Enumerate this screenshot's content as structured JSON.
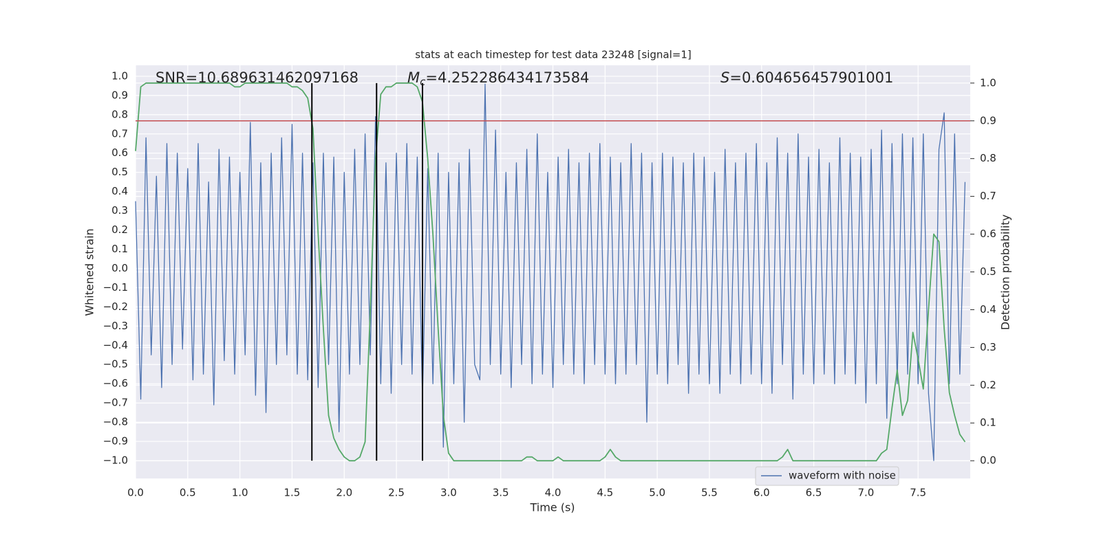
{
  "chart_data": {
    "type": "line",
    "title": "stats at each timestep for test data 23248 [signal=1]",
    "xlabel": "Time (s)",
    "ylabel": "Whitened strain",
    "y2label": "Detection probability",
    "annotations": [
      {
        "text": "SNR=10.689631462097168"
      },
      {
        "symbol": "M",
        "subscript": "c",
        "text": "=4.252286434173584"
      },
      {
        "symbol": "S",
        "text": "=0.604656457901001"
      }
    ],
    "xlim": [
      0,
      8.0
    ],
    "ylim": [
      -1.093,
      1.057
    ],
    "y2lim": [
      -0.047,
      1.047
    ],
    "grid": true,
    "legend": "lower right",
    "xticks": [
      {
        "value": 0,
        "label": "0.0"
      },
      {
        "value": 0.5,
        "label": "0.5"
      },
      {
        "value": 1,
        "label": "1.0"
      },
      {
        "value": 1.5,
        "label": "1.5"
      },
      {
        "value": 2,
        "label": "2.0"
      },
      {
        "value": 2.5,
        "label": "2.5"
      },
      {
        "value": 3,
        "label": "3.0"
      },
      {
        "value": 3.5,
        "label": "3.5"
      },
      {
        "value": 4,
        "label": "4.0"
      },
      {
        "value": 4.5,
        "label": "4.5"
      },
      {
        "value": 5,
        "label": "5.0"
      },
      {
        "value": 5.5,
        "label": "5.5"
      },
      {
        "value": 6,
        "label": "6.0"
      },
      {
        "value": 6.5,
        "label": "6.5"
      },
      {
        "value": 7,
        "label": "7.0"
      },
      {
        "value": 7.5,
        "label": "7.5"
      }
    ],
    "yticks": [
      {
        "value": -1,
        "label": "−1.0"
      },
      {
        "value": -0.9,
        "label": "−0.9"
      },
      {
        "value": -0.8,
        "label": "−0.8"
      },
      {
        "value": -0.7,
        "label": "−0.7"
      },
      {
        "value": -0.6,
        "label": "−0.6"
      },
      {
        "value": -0.5,
        "label": "−0.5"
      },
      {
        "value": -0.4,
        "label": "−0.4"
      },
      {
        "value": -0.3,
        "label": "−0.3"
      },
      {
        "value": -0.2,
        "label": "−0.2"
      },
      {
        "value": -0.1,
        "label": "−0.1"
      },
      {
        "value": 0,
        "label": "0.0"
      },
      {
        "value": 0.1,
        "label": "0.1"
      },
      {
        "value": 0.2,
        "label": "0.2"
      },
      {
        "value": 0.3,
        "label": "0.3"
      },
      {
        "value": 0.4,
        "label": "0.4"
      },
      {
        "value": 0.5,
        "label": "0.5"
      },
      {
        "value": 0.6,
        "label": "0.6"
      },
      {
        "value": 0.7,
        "label": "0.7"
      },
      {
        "value": 0.8,
        "label": "0.8"
      },
      {
        "value": 0.9,
        "label": "0.9"
      },
      {
        "value": 1,
        "label": "1.0"
      }
    ],
    "y2ticks": [
      {
        "value": 0,
        "label": "0.0"
      },
      {
        "value": 0.1,
        "label": "0.1"
      },
      {
        "value": 0.2,
        "label": "0.2"
      },
      {
        "value": 0.3,
        "label": "0.3"
      },
      {
        "value": 0.4,
        "label": "0.4"
      },
      {
        "value": 0.5,
        "label": "0.5"
      },
      {
        "value": 0.6,
        "label": "0.6"
      },
      {
        "value": 0.7,
        "label": "0.7"
      },
      {
        "value": 0.8,
        "label": "0.8"
      },
      {
        "value": 0.9,
        "label": "0.9"
      },
      {
        "value": 1,
        "label": "1.0"
      }
    ],
    "x": [
      0,
      0.05,
      0.1,
      0.15,
      0.2,
      0.25,
      0.3,
      0.35,
      0.4,
      0.45,
      0.5,
      0.55,
      0.6,
      0.65,
      0.7,
      0.75,
      0.8,
      0.85,
      0.9,
      0.95,
      1,
      1.05,
      1.1,
      1.15,
      1.2,
      1.25,
      1.3,
      1.35,
      1.4,
      1.45,
      1.5,
      1.55,
      1.6,
      1.65,
      1.7,
      1.75,
      1.8,
      1.85,
      1.9,
      1.95,
      2,
      2.05,
      2.1,
      2.15,
      2.2,
      2.25,
      2.3,
      2.35,
      2.4,
      2.45,
      2.5,
      2.55,
      2.6,
      2.65,
      2.7,
      2.75,
      2.8,
      2.85,
      2.9,
      2.95,
      3,
      3.05,
      3.1,
      3.15,
      3.2,
      3.25,
      3.3,
      3.35,
      3.4,
      3.45,
      3.5,
      3.55,
      3.6,
      3.65,
      3.7,
      3.75,
      3.8,
      3.85,
      3.9,
      3.95,
      4,
      4.05,
      4.1,
      4.15,
      4.2,
      4.25,
      4.3,
      4.35,
      4.4,
      4.45,
      4.5,
      4.55,
      4.6,
      4.65,
      4.7,
      4.75,
      4.8,
      4.85,
      4.9,
      4.95,
      5,
      5.05,
      5.1,
      5.15,
      5.2,
      5.25,
      5.3,
      5.35,
      5.4,
      5.45,
      5.5,
      5.55,
      5.6,
      5.65,
      5.7,
      5.75,
      5.8,
      5.85,
      5.9,
      5.95,
      6,
      6.05,
      6.1,
      6.15,
      6.2,
      6.25,
      6.3,
      6.35,
      6.4,
      6.45,
      6.5,
      6.55,
      6.6,
      6.65,
      6.7,
      6.75,
      6.8,
      6.85,
      6.9,
      6.95,
      7,
      7.05,
      7.1,
      7.15,
      7.2,
      7.25,
      7.3,
      7.35,
      7.4,
      7.45,
      7.5,
      7.55,
      7.6,
      7.65,
      7.7,
      7.75,
      7.8,
      7.85,
      7.9,
      7.95
    ],
    "series": [
      {
        "name": "waveform with noise",
        "color": "#4c72b0",
        "values": [
          0.35,
          -0.68,
          0.68,
          -0.45,
          0.48,
          -0.62,
          0.65,
          -0.5,
          0.6,
          -0.42,
          0.52,
          -0.58,
          0.65,
          -0.55,
          0.45,
          -0.71,
          0.62,
          -0.48,
          0.58,
          -0.55,
          0.5,
          -0.45,
          0.76,
          -0.66,
          0.55,
          -0.75,
          0.6,
          -0.5,
          0.68,
          -0.45,
          0.75,
          -0.55,
          0.6,
          -0.58,
          0.55,
          -0.62,
          0.6,
          -0.5,
          0.58,
          -0.85,
          0.5,
          -0.55,
          0.62,
          -0.5,
          0.7,
          -0.45,
          0.79,
          -0.6,
          0.55,
          -0.65,
          0.6,
          -0.5,
          0.65,
          -0.55,
          0.58,
          -0.68,
          0.52,
          -0.6,
          0.6,
          -0.93,
          0.5,
          -0.6,
          0.55,
          -0.8,
          0.62,
          -0.5,
          -0.58,
          0.96,
          -0.5,
          0.72,
          -0.55,
          0.5,
          -0.62,
          0.55,
          -0.5,
          0.62,
          -0.6,
          0.7,
          -0.55,
          0.5,
          -0.62,
          0.58,
          -0.5,
          0.62,
          -0.55,
          0.55,
          -0.6,
          0.6,
          -0.5,
          0.65,
          -0.55,
          0.58,
          -0.6,
          0.55,
          -0.55,
          0.65,
          -0.5,
          0.6,
          -0.8,
          0.55,
          -0.55,
          0.6,
          -0.6,
          0.58,
          -0.5,
          0.55,
          -0.65,
          0.6,
          -0.55,
          0.58,
          -0.6,
          0.5,
          -0.65,
          0.62,
          -0.55,
          0.55,
          -0.6,
          0.6,
          -0.55,
          0.65,
          -0.6,
          0.55,
          -0.65,
          0.68,
          -0.5,
          0.6,
          -0.68,
          0.7,
          -0.55,
          0.58,
          -0.6,
          0.62,
          -0.55,
          0.55,
          -0.6,
          0.68,
          -0.55,
          0.6,
          -0.6,
          0.58,
          -0.7,
          0.62,
          -0.6,
          0.72,
          -0.78,
          0.65,
          -0.6,
          0.7,
          -0.55,
          0.68,
          -0.6,
          0.7,
          -0.65,
          -1.0,
          0.62,
          0.81,
          -0.6,
          0.7,
          -0.55,
          0.45
        ]
      },
      {
        "color": "#55a868",
        "axis": "y2",
        "values": [
          0.82,
          0.99,
          1.0,
          1.0,
          1.0,
          1.0,
          1.0,
          1.0,
          1.0,
          1.0,
          1.0,
          1.0,
          1.0,
          1.0,
          1.0,
          1.0,
          1.0,
          1.0,
          1.0,
          0.99,
          0.99,
          1.0,
          1.0,
          1.0,
          1.0,
          1.0,
          1.0,
          1.0,
          1.0,
          1.0,
          0.99,
          0.99,
          0.98,
          0.96,
          0.88,
          0.6,
          0.35,
          0.12,
          0.06,
          0.03,
          0.01,
          0.0,
          0.0,
          0.01,
          0.05,
          0.4,
          0.8,
          0.97,
          0.99,
          0.99,
          1.0,
          1.0,
          1.0,
          1.0,
          0.99,
          0.95,
          0.8,
          0.6,
          0.35,
          0.12,
          0.02,
          0.0,
          0.0,
          0.0,
          0.0,
          0.0,
          0.0,
          0.0,
          0.0,
          0.0,
          0.0,
          0.0,
          0.0,
          0.0,
          0.0,
          0.01,
          0.01,
          0.0,
          0.0,
          0.0,
          0.0,
          0.01,
          0.0,
          0.0,
          0.0,
          0.0,
          0.0,
          0.0,
          0.0,
          0.0,
          0.01,
          0.03,
          0.01,
          0.0,
          0.0,
          0.0,
          0.0,
          0.0,
          0.0,
          0.0,
          0.0,
          0.0,
          0.0,
          0.0,
          0.0,
          0.0,
          0.0,
          0.0,
          0.0,
          0.0,
          0.0,
          0.0,
          0.0,
          0.0,
          0.0,
          0.0,
          0.0,
          0.0,
          0.0,
          0.0,
          0.0,
          0.0,
          0.0,
          0.0,
          0.01,
          0.03,
          0.0,
          0.0,
          0.0,
          0.0,
          0.0,
          0.0,
          0.0,
          0.0,
          0.0,
          0.0,
          0.0,
          0.0,
          0.0,
          0.0,
          0.0,
          0.0,
          0.0,
          0.02,
          0.03,
          0.14,
          0.24,
          0.12,
          0.16,
          0.34,
          0.27,
          0.19,
          0.4,
          0.6,
          0.58,
          0.35,
          0.18,
          0.12,
          0.07,
          0.05
        ]
      }
    ],
    "hline": {
      "value": 0.9,
      "axis": "y2",
      "color": "#c44e52"
    },
    "vlines": {
      "x": [
        1.69,
        2.31,
        2.75
      ],
      "y2range": [
        0,
        1
      ],
      "color": "#000000"
    }
  }
}
